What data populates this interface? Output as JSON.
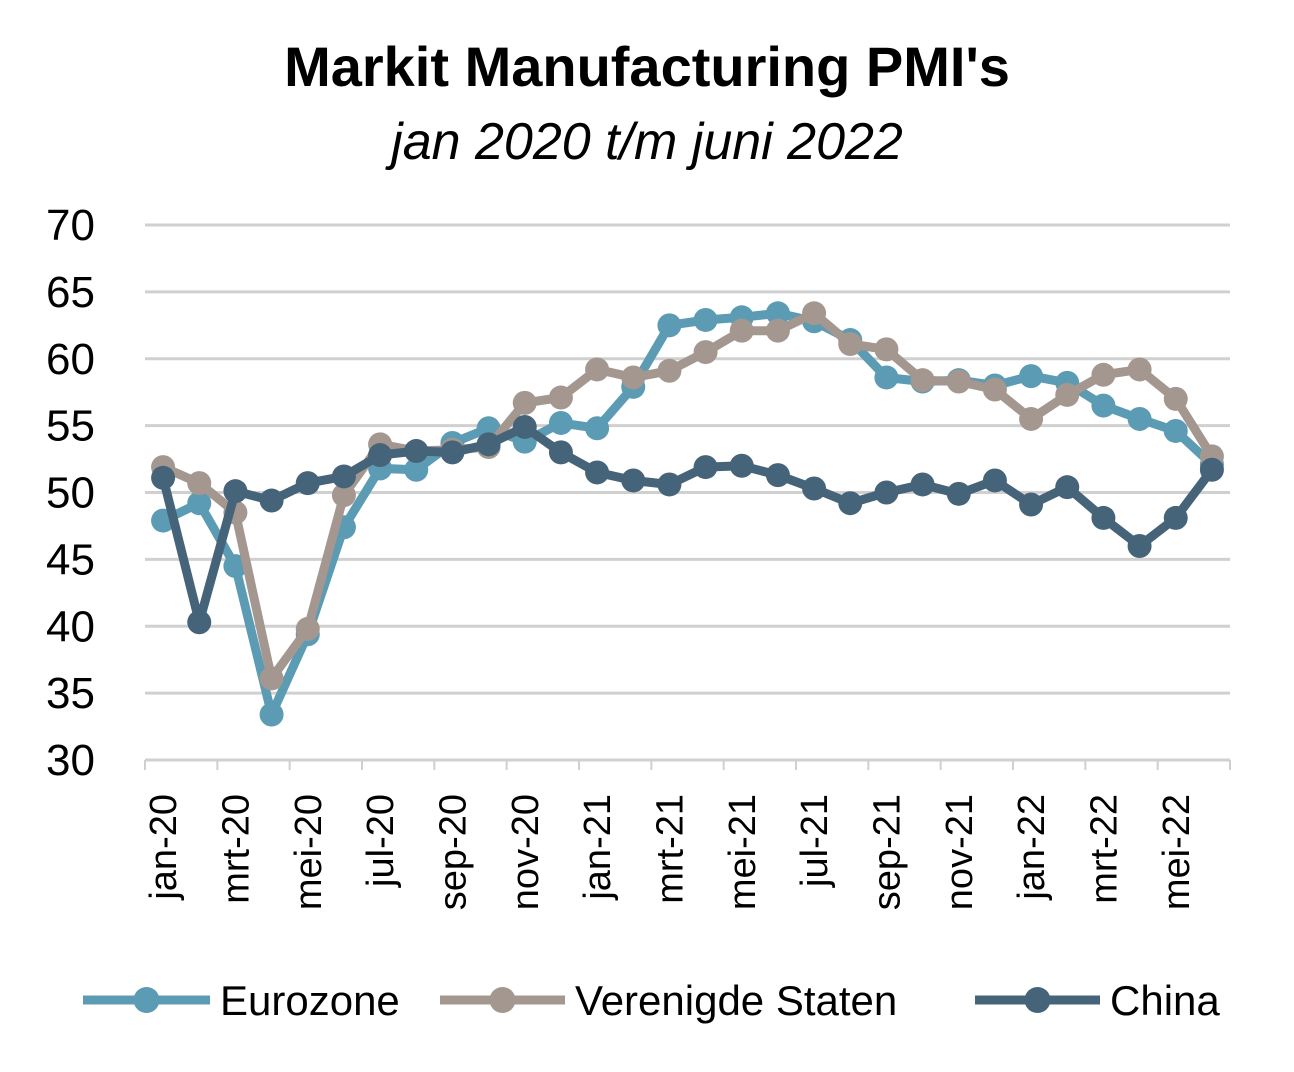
{
  "chart_data": {
    "type": "line",
    "title": "Markit Manufacturing PMI's",
    "subtitle": "jan 2020 t/m juni 2022",
    "ylim": [
      30,
      70
    ],
    "yticks": [
      30,
      35,
      40,
      45,
      50,
      55,
      60,
      65,
      70
    ],
    "grid": true,
    "legend_position": "bottom",
    "x_tick_labels": [
      "jan-20",
      "mrt-20",
      "mei-20",
      "jul-20",
      "sep-20",
      "nov-20",
      "jan-21",
      "mrt-21",
      "mei-21",
      "jul-21",
      "sep-21",
      "nov-21",
      "jan-22",
      "mrt-22",
      "mei-22"
    ],
    "x": [
      "jan-20",
      "feb-20",
      "mrt-20",
      "apr-20",
      "mei-20",
      "jun-20",
      "jul-20",
      "aug-20",
      "sep-20",
      "okt-20",
      "nov-20",
      "dec-20",
      "jan-21",
      "feb-21",
      "mrt-21",
      "apr-21",
      "mei-21",
      "jun-21",
      "jul-21",
      "aug-21",
      "sep-21",
      "okt-21",
      "nov-21",
      "dec-21",
      "jan-22",
      "feb-22",
      "mrt-22",
      "apr-22",
      "mei-22",
      "jun-22"
    ],
    "series": [
      {
        "name": "Eurozone",
        "color": "#5b9bb3",
        "values": [
          47.9,
          49.2,
          44.5,
          33.4,
          39.4,
          47.4,
          51.8,
          51.7,
          53.7,
          54.8,
          53.8,
          55.2,
          54.8,
          57.9,
          62.5,
          62.9,
          63.1,
          63.4,
          62.8,
          61.4,
          58.6,
          58.3,
          58.4,
          58.0,
          58.7,
          58.2,
          56.5,
          55.5,
          54.6,
          52.1
        ]
      },
      {
        "name": "Verenigde Staten",
        "color": "#a39790",
        "values": [
          51.9,
          50.7,
          48.5,
          36.1,
          39.8,
          49.8,
          53.6,
          53.1,
          53.2,
          53.4,
          56.7,
          57.1,
          59.2,
          58.6,
          59.1,
          60.5,
          62.1,
          62.1,
          63.4,
          61.1,
          60.7,
          58.4,
          58.3,
          57.7,
          55.5,
          57.3,
          58.8,
          59.2,
          57.0,
          52.7
        ]
      },
      {
        "name": "China",
        "color": "#466479",
        "values": [
          51.1,
          40.3,
          50.1,
          49.4,
          50.7,
          51.2,
          52.8,
          53.1,
          53.0,
          53.6,
          54.9,
          53.0,
          51.5,
          50.9,
          50.6,
          51.9,
          52.0,
          51.3,
          50.3,
          49.2,
          50.0,
          50.6,
          49.9,
          50.9,
          49.1,
          50.4,
          48.1,
          46.0,
          48.1,
          51.7
        ]
      }
    ]
  }
}
